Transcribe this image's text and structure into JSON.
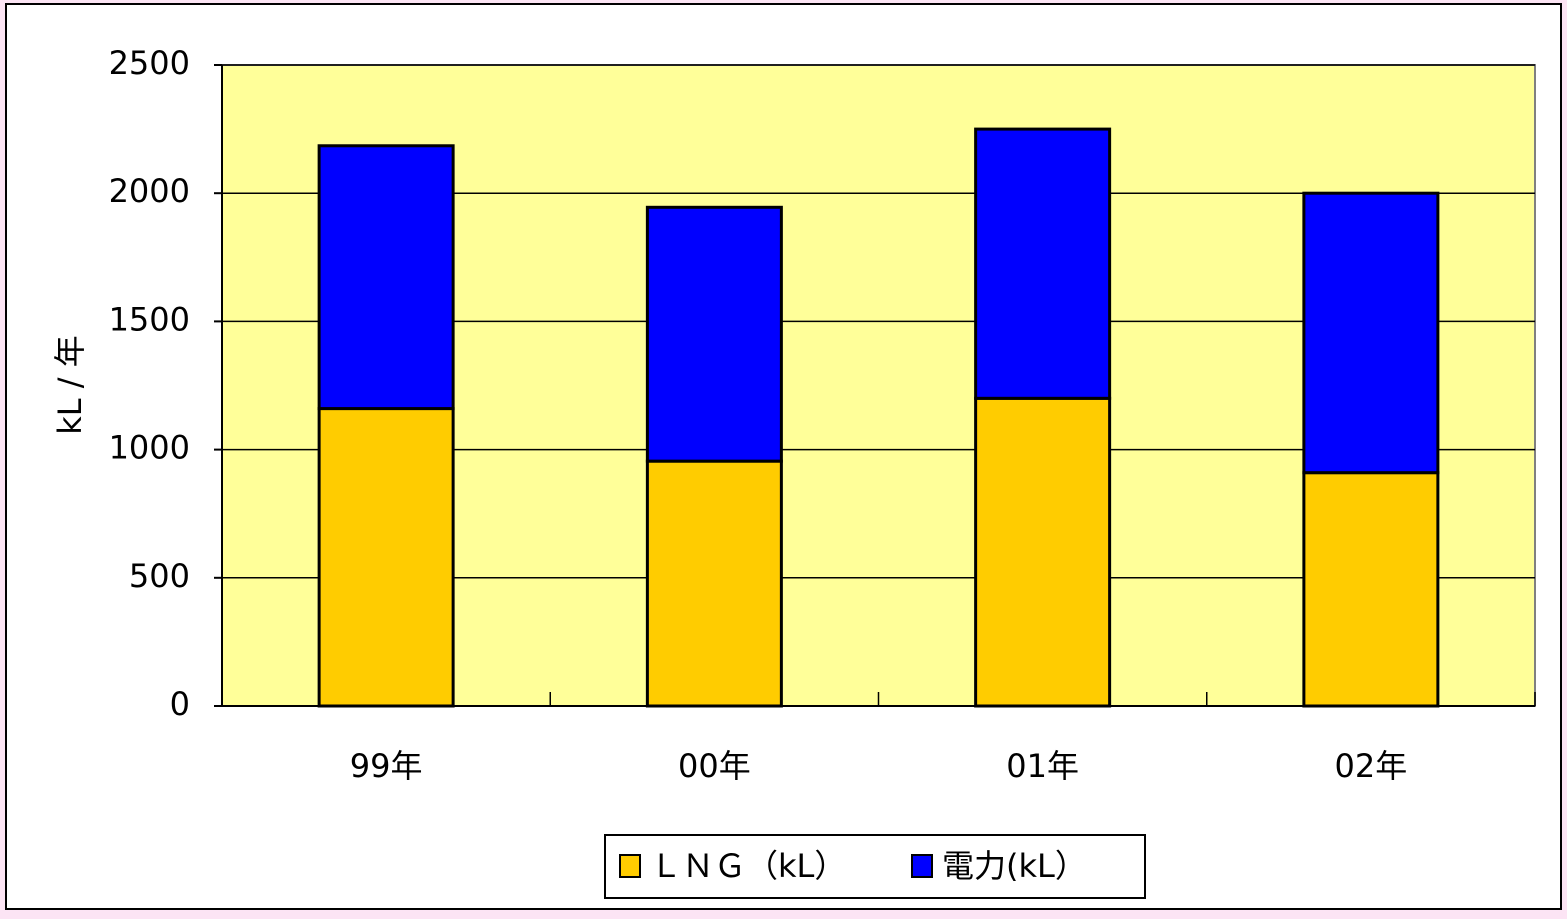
{
  "chart_data": {
    "type": "bar",
    "stacked": true,
    "ylabel": "kL / 年",
    "categories": [
      "99年",
      "00年",
      "01年",
      "02年"
    ],
    "series": [
      {
        "name": "ＬＮＧ（kL）",
        "color": "#ffcc00",
        "values": [
          1160,
          955,
          1200,
          910
        ]
      },
      {
        "name": "電力(kL）",
        "color": "#0000ff",
        "values": [
          1025,
          990,
          1050,
          1090
        ]
      }
    ],
    "ylim": [
      0,
      2500
    ],
    "yticks": [
      0,
      500,
      1000,
      1500,
      2000,
      2500
    ],
    "grid": true,
    "plot_background": "#ffff99",
    "legend": "bottom"
  }
}
